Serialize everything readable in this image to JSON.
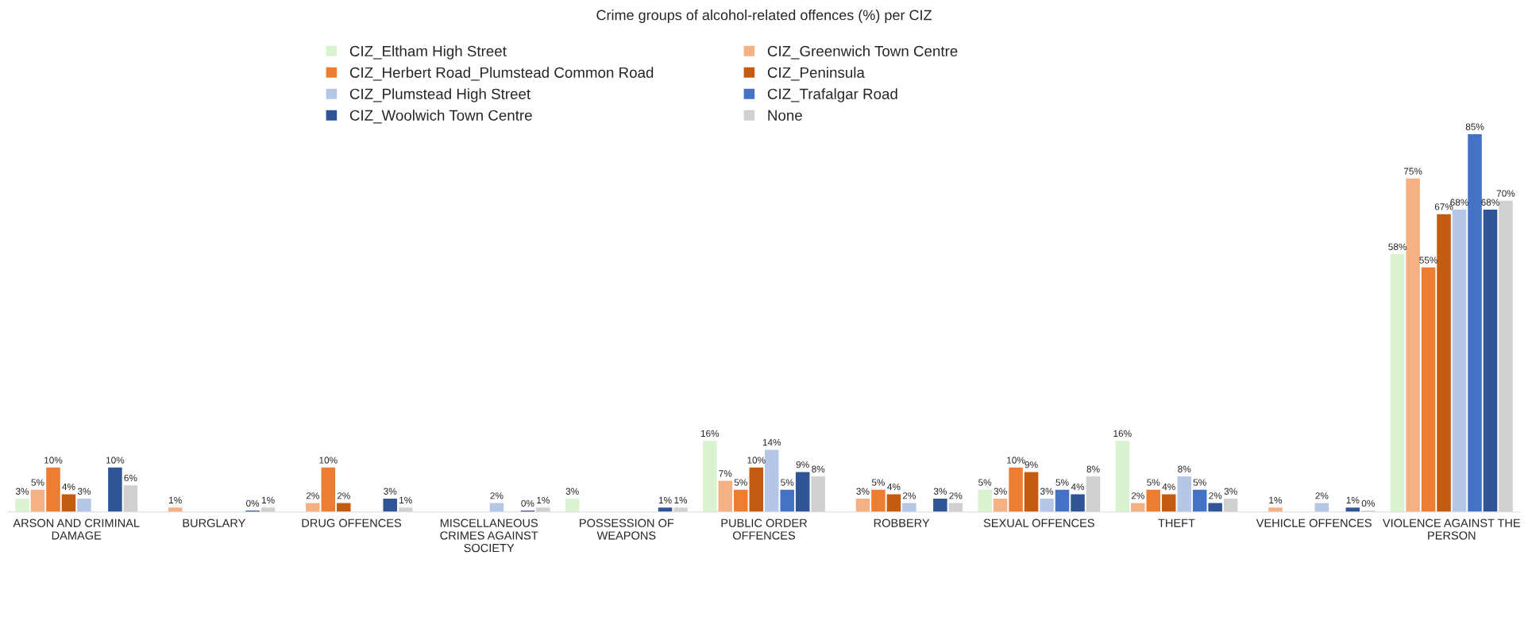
{
  "chart_data": {
    "type": "bar",
    "title": "Crime groups of alcohol-related offences (%) per CIZ",
    "categories": [
      "ARSON AND CRIMINAL\nDAMAGE",
      "BURGLARY",
      "DRUG OFFENCES",
      "MISCELLANEOUS\nCRIMES AGAINST\nSOCIETY",
      "POSSESSION OF\nWEAPONS",
      "PUBLIC ORDER\nOFFENCES",
      "ROBBERY",
      "SEXUAL OFFENCES",
      "THEFT",
      "VEHICLE OFFENCES",
      "VIOLENCE AGAINST THE\nPERSON"
    ],
    "series": [
      {
        "name": "CIZ_Eltham High Street",
        "color": "#d9f2d0",
        "values": [
          3,
          null,
          null,
          null,
          3,
          16,
          null,
          5,
          16,
          null,
          58
        ],
        "value_labels": [
          "3%",
          null,
          null,
          null,
          "3%",
          "16%",
          null,
          "5%",
          "16%",
          null,
          "58%"
        ]
      },
      {
        "name": "CIZ_Greenwich Town Centre",
        "color": "#f4b183",
        "values": [
          5,
          1,
          2,
          null,
          null,
          7,
          3,
          3,
          2,
          1,
          75
        ],
        "value_labels": [
          "5%",
          "1%",
          "2%",
          null,
          null,
          "7%",
          "3%",
          "3%",
          "2%",
          "1%",
          "75%"
        ]
      },
      {
        "name": "CIZ_Herbert Road_Plumstead Common Road",
        "color": "#ed7d31",
        "values": [
          10,
          null,
          10,
          null,
          null,
          5,
          5,
          10,
          5,
          null,
          55
        ],
        "value_labels": [
          "10%",
          null,
          "10%",
          null,
          null,
          "5%",
          "5%",
          "10%",
          "5%",
          null,
          "55%"
        ]
      },
      {
        "name": "CIZ_Peninsula",
        "color": "#c55a11",
        "values": [
          4,
          null,
          2,
          null,
          null,
          10,
          4,
          9,
          4,
          null,
          67
        ],
        "value_labels": [
          "4%",
          null,
          "2%",
          null,
          null,
          "10%",
          "4%",
          "9%",
          "4%",
          null,
          "67%"
        ]
      },
      {
        "name": "CIZ_Plumstead High Street",
        "color": "#b4c7e7",
        "values": [
          3,
          null,
          null,
          2,
          null,
          14,
          2,
          3,
          8,
          2,
          68
        ],
        "value_labels": [
          "3%",
          null,
          null,
          "2%",
          null,
          "14%",
          "2%",
          "3%",
          "8%",
          "2%",
          "68%"
        ]
      },
      {
        "name": "CIZ_Trafalgar Road",
        "color": "#4472c4",
        "values": [
          null,
          null,
          null,
          null,
          null,
          5,
          null,
          5,
          5,
          null,
          85
        ],
        "value_labels": [
          null,
          null,
          null,
          null,
          null,
          "5%",
          null,
          "5%",
          "5%",
          null,
          "85%"
        ]
      },
      {
        "name": "CIZ_Woolwich Town Centre",
        "color": "#2f5597",
        "values": [
          10,
          0.3,
          3,
          0.3,
          1,
          9,
          3,
          4,
          2,
          1,
          68
        ],
        "value_labels": [
          "10%",
          "0%",
          "3%",
          "0%",
          "1%",
          "9%",
          "3%",
          "4%",
          "2%",
          "1%",
          "68%"
        ]
      },
      {
        "name": "None",
        "color": "#d0d0d0",
        "values": [
          6,
          1,
          1,
          1,
          1,
          8,
          2,
          8,
          3,
          0.3,
          70
        ],
        "value_labels": [
          "6%",
          "1%",
          "1%",
          "1%",
          "1%",
          "8%",
          "2%",
          "8%",
          "3%",
          "0%",
          "70%"
        ]
      }
    ],
    "legend": "top",
    "grid": false,
    "tick_labels": "x"
  }
}
